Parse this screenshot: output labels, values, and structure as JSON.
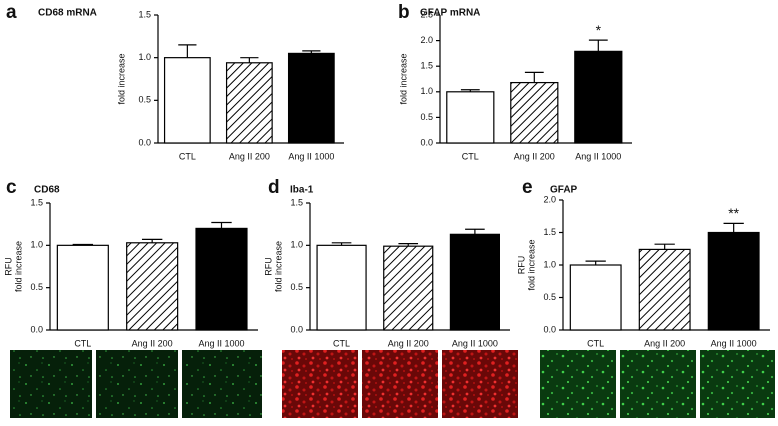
{
  "chart_data": [
    {
      "type": "bar",
      "panel": "a",
      "title": "CD68 mRNA",
      "ylabel": [
        "fold increase"
      ],
      "categories": [
        "CTL",
        "Ang II 200",
        "Ang II 1000"
      ],
      "values": [
        1.0,
        0.94,
        1.05
      ],
      "errors": [
        0.15,
        0.06,
        0.03
      ],
      "fills": [
        "white",
        "hatch",
        "black"
      ],
      "annotations": [
        null,
        null,
        null
      ],
      "ylim": [
        0,
        1.5
      ],
      "yticks": [
        {
          "value": 0,
          "label": "0.0"
        },
        0.5,
        {
          "value": 1,
          "label": "1.0"
        },
        1.5
      ]
    },
    {
      "type": "bar",
      "panel": "b",
      "title": "GFAP mRNA",
      "ylabel": [
        "fold increase"
      ],
      "categories": [
        "CTL",
        "Ang II 200",
        "Ang II 1000"
      ],
      "values": [
        1.0,
        1.18,
        1.79
      ],
      "errors": [
        0.04,
        0.2,
        0.22
      ],
      "fills": [
        "white",
        "hatch",
        "black"
      ],
      "annotations": [
        null,
        null,
        "*"
      ],
      "ylim": [
        0,
        2.5
      ],
      "yticks": [
        {
          "value": 0,
          "label": "0.0"
        },
        0.5,
        {
          "value": 1,
          "label": "1.0"
        },
        1.5,
        {
          "value": 2,
          "label": "2.0"
        },
        2.5
      ]
    },
    {
      "type": "bar",
      "panel": "c",
      "title": "CD68",
      "ylabel": [
        "RFU",
        "fold increase"
      ],
      "categories": [
        "CTL",
        "Ang II 200",
        "Ang II 1000"
      ],
      "values": [
        1.0,
        1.03,
        1.2
      ],
      "errors": [
        0.01,
        0.04,
        0.07
      ],
      "fills": [
        "white",
        "hatch",
        "black"
      ],
      "annotations": [
        null,
        null,
        null
      ],
      "ylim": [
        0,
        1.5
      ],
      "yticks": [
        {
          "value": 0,
          "label": "0.0"
        },
        0.5,
        {
          "value": 1,
          "label": "1.0"
        },
        1.5
      ]
    },
    {
      "type": "bar",
      "panel": "d",
      "title": "Iba-1",
      "ylabel": [
        "RFU",
        "fold increase"
      ],
      "categories": [
        "CTL",
        "Ang II 200",
        "Ang II 1000"
      ],
      "values": [
        1.0,
        0.99,
        1.13
      ],
      "errors": [
        0.03,
        0.03,
        0.06
      ],
      "fills": [
        "white",
        "hatch",
        "black"
      ],
      "annotations": [
        null,
        null,
        null
      ],
      "ylim": [
        0,
        1.5
      ],
      "yticks": [
        {
          "value": 0,
          "label": "0.0"
        },
        0.5,
        {
          "value": 1,
          "label": "1.0"
        },
        1.5
      ]
    },
    {
      "type": "bar",
      "panel": "e",
      "title": "GFAP",
      "ylabel": [
        "RFU",
        "fold increase"
      ],
      "categories": [
        "CTL",
        "Ang II 200",
        "Ang II 1000"
      ],
      "values": [
        1.0,
        1.24,
        1.5
      ],
      "errors": [
        0.06,
        0.08,
        0.14
      ],
      "fills": [
        "white",
        "hatch",
        "black"
      ],
      "annotations": [
        null,
        null,
        "**"
      ],
      "ylim": [
        0,
        2.0
      ],
      "yticks": [
        {
          "value": 0,
          "label": "0.0"
        },
        0.5,
        {
          "value": 1,
          "label": "1.0"
        },
        1.5,
        {
          "value": 2,
          "label": "2.0"
        }
      ]
    }
  ]
}
